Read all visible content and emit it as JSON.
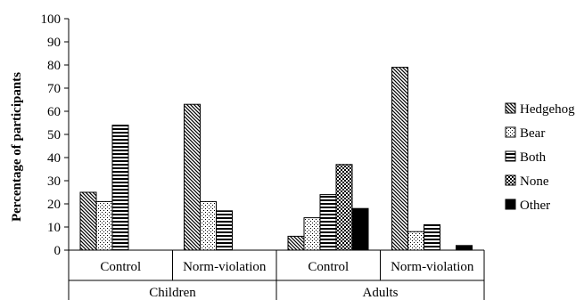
{
  "chart_data": {
    "type": "bar",
    "ylabel": "Percentage of participants",
    "xlabel": "",
    "title": "",
    "ylim": [
      0,
      100
    ],
    "yticks": [
      0,
      10,
      20,
      30,
      40,
      50,
      60,
      70,
      80,
      90,
      100
    ],
    "grid": false,
    "legend_position": "right",
    "groups": [
      "Children",
      "Adults"
    ],
    "categories": [
      {
        "group": "Children",
        "label": "Control"
      },
      {
        "group": "Children",
        "label": "Norm-violation"
      },
      {
        "group": "Adults",
        "label": "Control"
      },
      {
        "group": "Adults",
        "label": "Norm-violation"
      }
    ],
    "series": [
      {
        "name": "Hedgehog",
        "pattern": "diagonal",
        "values": [
          25,
          63,
          6,
          79
        ]
      },
      {
        "name": "Bear",
        "pattern": "dotted",
        "values": [
          21,
          21,
          14,
          8
        ]
      },
      {
        "name": "Both",
        "pattern": "horizontal",
        "values": [
          54,
          17,
          24,
          11
        ]
      },
      {
        "name": "None",
        "pattern": "checker",
        "values": [
          null,
          null,
          37,
          null
        ]
      },
      {
        "name": "Other",
        "pattern": "solid",
        "values": [
          null,
          null,
          18,
          2
        ]
      }
    ]
  }
}
